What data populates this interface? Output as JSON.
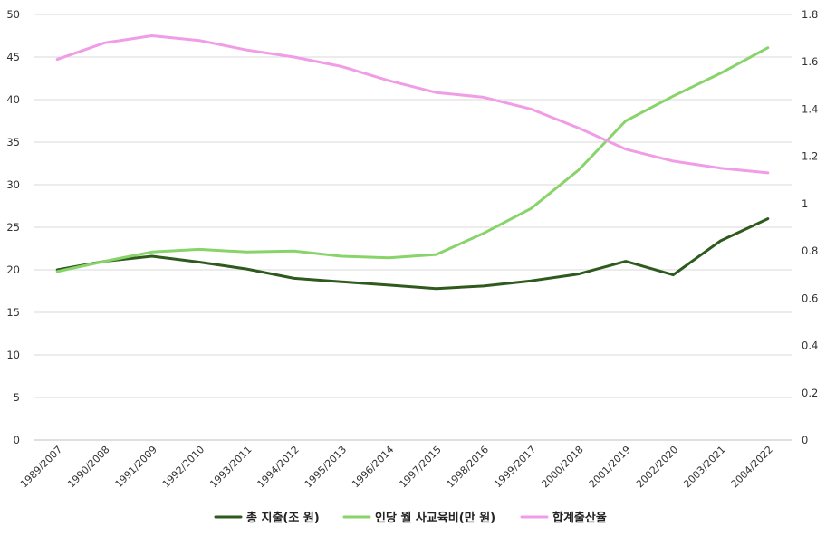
{
  "chart_data": {
    "type": "line",
    "categories": [
      "1989/2007",
      "1990/2008",
      "1991/2009",
      "1992/2010",
      "1993/2011",
      "1994/2012",
      "1995/2013",
      "1996/2014",
      "1997/2015",
      "1998/2016",
      "1999/2017",
      "2000/2018",
      "2001/2019",
      "2002/2020",
      "2003/2021",
      "2004/2022"
    ],
    "y_left": {
      "min": 0,
      "max": 50,
      "ticks": [
        "0",
        "5",
        "10",
        "15",
        "20",
        "25",
        "30",
        "35",
        "40",
        "45",
        "50"
      ]
    },
    "y_right": {
      "min": 0,
      "max": 1.8,
      "ticks": [
        "0",
        "0.2",
        "0.4",
        "0.6",
        "0.8",
        "1",
        "1.2",
        "1.4",
        "1.6",
        "1.8"
      ]
    },
    "grid": true,
    "legend_position": "bottom",
    "series": [
      {
        "name": "총 지출(조 원)",
        "axis": "left",
        "color": "#2f5a1e",
        "values": [
          20.0,
          21.0,
          21.6,
          20.9,
          20.1,
          19.0,
          18.6,
          18.2,
          17.8,
          18.1,
          18.7,
          19.5,
          21.0,
          19.4,
          23.4,
          26.0
        ]
      },
      {
        "name": "인당 월 사교육비(만 원)",
        "axis": "left",
        "color": "#88d46a",
        "values": [
          19.8,
          21.0,
          22.1,
          22.4,
          22.1,
          22.2,
          21.6,
          21.4,
          21.8,
          24.3,
          27.2,
          31.7,
          37.5,
          40.4,
          43.1,
          46.1
        ]
      },
      {
        "name": "합계출산율",
        "axis": "right",
        "color": "#f09ce6",
        "values": [
          1.61,
          1.68,
          1.71,
          1.69,
          1.65,
          1.62,
          1.58,
          1.52,
          1.47,
          1.45,
          1.4,
          1.32,
          1.23,
          1.18,
          1.15,
          1.13
        ]
      }
    ]
  }
}
